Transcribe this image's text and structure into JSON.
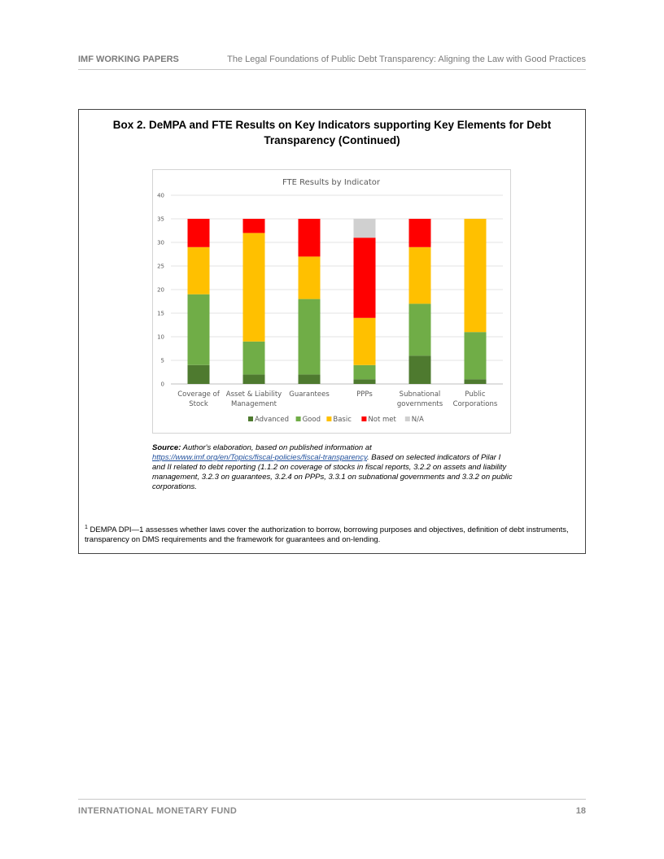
{
  "header": {
    "left": "IMF WORKING PAPERS",
    "right": "The Legal Foundations of Public Debt Transparency: Aligning the Law with Good Practices"
  },
  "box": {
    "title_line1": "Box 2. DeMPA and FTE Results on Key Indicators supporting Key Elements for Debt",
    "title_line2": "Transparency (Continued)"
  },
  "chart_data": {
    "type": "bar",
    "stacked": true,
    "title": "FTE Results by Indicator",
    "categories": [
      [
        "Coverage of",
        "Stock"
      ],
      [
        "Asset & Liability",
        "Management"
      ],
      [
        "Guarantees"
      ],
      [
        "PPPs"
      ],
      [
        "Subnational",
        "governments"
      ],
      [
        "Public",
        "Corporations"
      ]
    ],
    "ylim": [
      0,
      40
    ],
    "yticks": [
      0,
      5,
      10,
      15,
      20,
      25,
      30,
      35,
      40
    ],
    "grid": true,
    "legend": "bottom",
    "series": [
      {
        "name": "Advanced",
        "color": "#4e7a2f",
        "values": [
          4,
          2,
          2,
          1,
          6,
          1
        ]
      },
      {
        "name": "Good",
        "color": "#70ad47",
        "values": [
          15,
          7,
          16,
          3,
          11,
          10
        ]
      },
      {
        "name": "Basic",
        "color": "#ffc000",
        "values": [
          10,
          23,
          9,
          10,
          12,
          24
        ]
      },
      {
        "name": "Not met",
        "color": "#ff0000",
        "values": [
          6,
          3,
          8,
          17,
          6,
          0
        ]
      },
      {
        "name": "N/A",
        "color": "#d0d0d0",
        "values": [
          0,
          0,
          0,
          4,
          0,
          0
        ]
      }
    ]
  },
  "source": {
    "label": "Source:",
    "text1": " Author's elaboration, based on published information at",
    "link": "https://www.imf.org/en/Topics/fiscal-policies/fiscal-transparency",
    "text2": ". Based on selected indicators of Pilar I and II related to debt reporting (1.1.2 on coverage of stocks in fiscal reports, 3.2.2 on assets and liability management, 3.2.3 on guarantees, 3.2.4 on PPPs, 3.3.1 on subnational governments and 3.3.2 on public corporations."
  },
  "footnote": {
    "mark": "1",
    "text": " DEMPA DPI—1 assesses whether laws cover the authorization to borrow, borrowing purposes and objectives, definition of debt instruments, transparency on DMS requirements and the framework for guarantees and on-lending."
  },
  "footer": {
    "left": "INTERNATIONAL MONETARY FUND",
    "right": "18"
  }
}
